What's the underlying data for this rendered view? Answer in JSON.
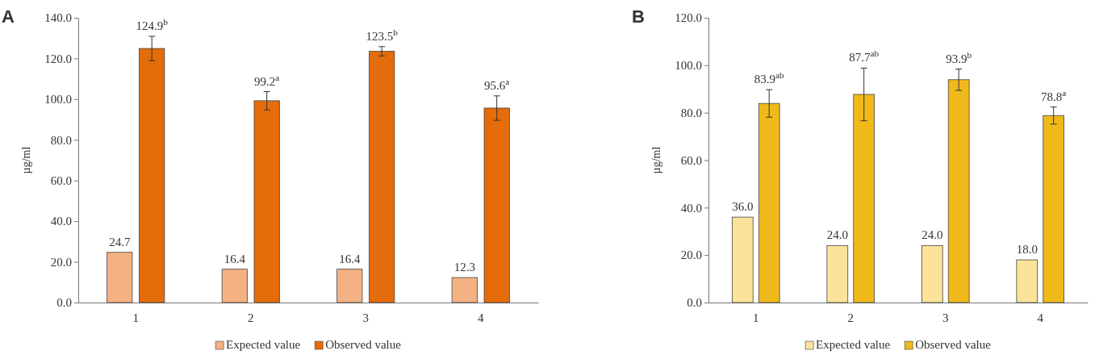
{
  "chart_data": [
    {
      "type": "bar",
      "title": "A",
      "ylabel": "µg/ml",
      "categories": [
        "1",
        "2",
        "3",
        "4"
      ],
      "ylim": [
        0,
        140
      ],
      "yticks": [
        {
          "value": 0,
          "label": "0.0"
        },
        {
          "value": 20,
          "label": "20.0"
        },
        {
          "value": 40,
          "label": "40.0"
        },
        {
          "value": 60,
          "label": "60.0"
        },
        {
          "value": 80,
          "label": "80.0"
        },
        {
          "value": 100,
          "label": "100.0"
        },
        {
          "value": 120,
          "label": "120.0"
        },
        {
          "value": 140,
          "label": "140.0"
        }
      ],
      "legend": "bottom",
      "series": [
        {
          "name": "Expected value",
          "color": "#f4b183",
          "values": [
            24.7,
            16.4,
            16.4,
            12.3
          ],
          "value_labels": [
            "24.7",
            "16.4",
            "16.4",
            "12.3"
          ]
        },
        {
          "name": "Observed value",
          "color": "#e46c0a",
          "values": [
            124.9,
            99.2,
            123.5,
            95.6
          ],
          "errors": [
            6,
            4.5,
            2.3,
            6
          ],
          "value_labels": [
            "124.9$^{b}$",
            "99.2$^{a}$",
            "123.5$^{b}$",
            "95.6$^{a}$"
          ]
        }
      ]
    },
    {
      "type": "bar",
      "title": "B",
      "ylabel": "µg/ml",
      "categories": [
        "1",
        "2",
        "3",
        "4"
      ],
      "ylim": [
        0,
        120
      ],
      "yticks": [
        {
          "value": 0,
          "label": "0.0"
        },
        {
          "value": 20,
          "label": "20.0"
        },
        {
          "value": 40,
          "label": "40.0"
        },
        {
          "value": 60,
          "label": "60.0"
        },
        {
          "value": 80,
          "label": "80.0"
        },
        {
          "value": 100,
          "label": "100.0"
        },
        {
          "value": 120,
          "label": "120.0"
        }
      ],
      "legend": "bottom",
      "series": [
        {
          "name": "Expected value",
          "color": "#fbe39a",
          "values": [
            36.0,
            24.0,
            24.0,
            18.0
          ],
          "value_labels": [
            "36.0",
            "24.0",
            "24.0",
            "18.0"
          ]
        },
        {
          "name": "Observed value",
          "color": "#f0b91a",
          "values": [
            83.9,
            87.7,
            93.9,
            78.8
          ],
          "errors": [
            5.8,
            11.1,
            4.5,
            3.6
          ],
          "value_labels": [
            "83.9$^{ab}$",
            "87.7$^{ab}$",
            "93.9$^{b}$",
            "78.8$^{a}$"
          ]
        }
      ]
    }
  ]
}
